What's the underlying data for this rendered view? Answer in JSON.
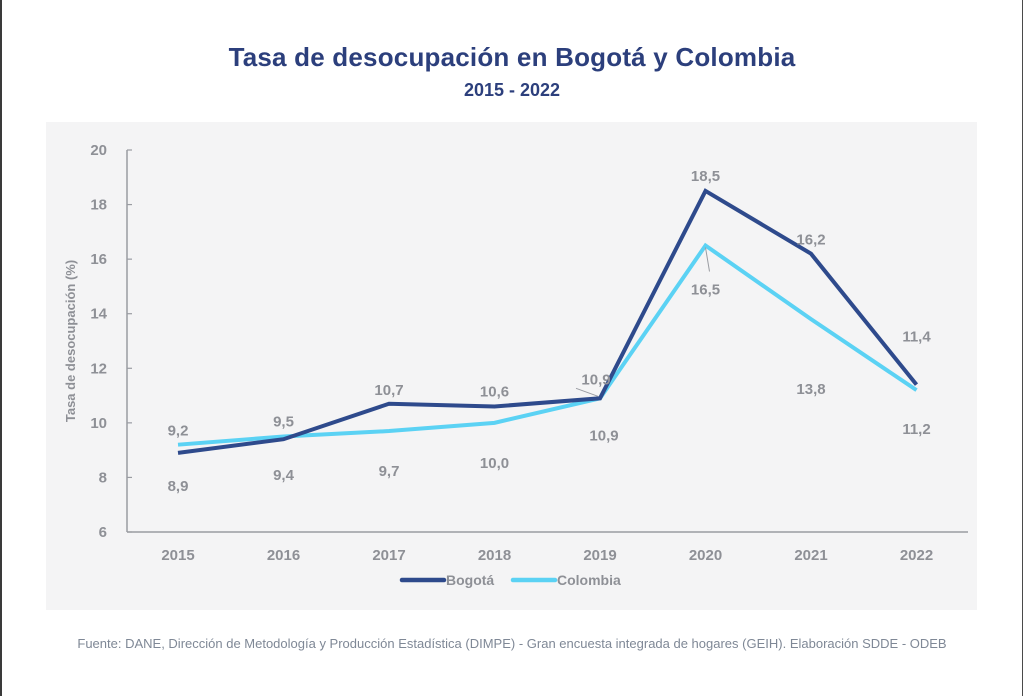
{
  "chart_data": {
    "type": "line",
    "title": "Tasa de desocupación en Bogotá y Colombia",
    "subtitle": "2015 - 2022",
    "xlabel": "",
    "ylabel": "Tasa de desocupación (%)",
    "ylim": [
      6,
      20
    ],
    "yticks": [
      6,
      8,
      10,
      12,
      14,
      16,
      18,
      20
    ],
    "categories": [
      "2015",
      "2016",
      "2017",
      "2018",
      "2019",
      "2020",
      "2021",
      "2022"
    ],
    "grid": false,
    "legend_position": "bottom-center",
    "series": [
      {
        "name": "Bogotá",
        "color": "#2e4a8c",
        "values": [
          8.9,
          9.4,
          10.7,
          10.6,
          10.9,
          18.5,
          16.2,
          11.4
        ],
        "labels": [
          "8,9",
          "9,4",
          "10,7",
          "10,6",
          "10,9",
          "18,5",
          "16,2",
          "11,4"
        ]
      },
      {
        "name": "Colombia",
        "color": "#5bd2f4",
        "values": [
          9.2,
          9.5,
          9.7,
          10.0,
          10.9,
          16.5,
          13.8,
          11.2
        ],
        "labels": [
          "9,2",
          "9,5",
          "9,7",
          "10,0",
          "10,9",
          "16,5",
          "13,8",
          "11,2"
        ]
      }
    ]
  },
  "source": "Fuente: DANE, Dirección de Metodología y Producción Estadística (DIMPE) - Gran encuesta integrada de hogares (GEIH). Elaboración SDDE - ODEB"
}
